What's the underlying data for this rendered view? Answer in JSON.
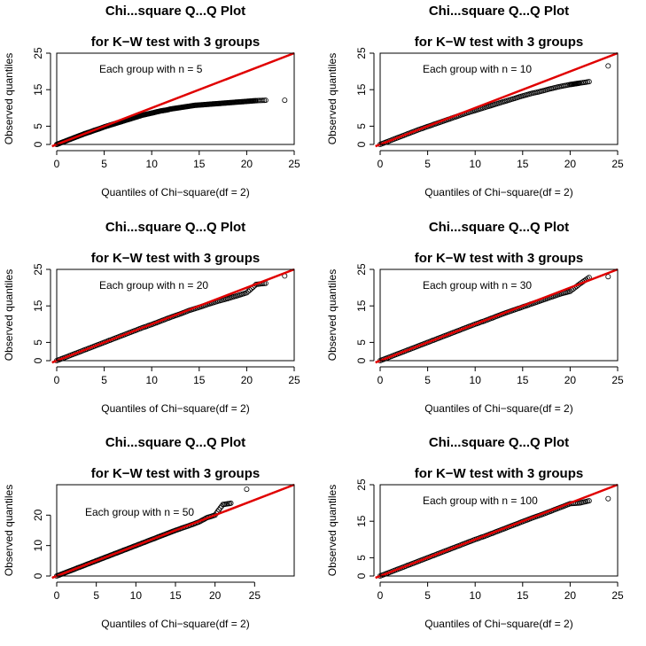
{
  "colors": {
    "reference_line": "#e00000",
    "points": "#000000",
    "axes": "#000000",
    "background": "#ffffff"
  },
  "chart_data": [
    {
      "type": "scatter",
      "title": "Chi...square Q...Q Plot",
      "subtitle": "for K−W test with 3 groups",
      "annotation": "Each group with n = 5",
      "xlabel": "Quantiles of Chi−square(df = 2)",
      "ylabel": "Observed quantiles",
      "xlim": [
        0,
        25
      ],
      "ylim": [
        0,
        25
      ],
      "xticks": [
        "0",
        "5",
        "10",
        "15",
        "20",
        "25"
      ],
      "yticks": [
        "0",
        "5",
        "15",
        "25"
      ],
      "yticks_values": [
        0,
        5,
        15,
        25
      ],
      "reference_line": {
        "intercept": 0,
        "slope": 1
      },
      "points": [
        [
          0,
          0
        ],
        [
          0.5,
          0.5
        ],
        [
          1,
          1
        ],
        [
          1.5,
          1.5
        ],
        [
          2,
          2
        ],
        [
          2.5,
          2.5
        ],
        [
          3,
          3
        ],
        [
          3.5,
          3.4
        ],
        [
          4,
          3.9
        ],
        [
          4.5,
          4.3
        ],
        [
          5,
          4.8
        ],
        [
          5.5,
          5.2
        ],
        [
          6,
          5.6
        ],
        [
          6.5,
          6.0
        ],
        [
          7,
          6.4
        ],
        [
          7.5,
          6.8
        ],
        [
          8,
          7.2
        ],
        [
          8.5,
          7.6
        ],
        [
          9,
          8.0
        ],
        [
          9.5,
          8.3
        ],
        [
          10,
          8.6
        ],
        [
          10.5,
          8.9
        ],
        [
          11,
          9.2
        ],
        [
          11.5,
          9.4
        ],
        [
          12,
          9.7
        ],
        [
          12.5,
          9.9
        ],
        [
          13,
          10.1
        ],
        [
          13.5,
          10.3
        ],
        [
          14,
          10.5
        ],
        [
          14.5,
          10.7
        ],
        [
          15,
          10.8
        ],
        [
          15.5,
          10.9
        ],
        [
          16,
          11.0
        ],
        [
          16.5,
          11.1
        ],
        [
          17,
          11.2
        ],
        [
          17.5,
          11.3
        ],
        [
          18,
          11.4
        ],
        [
          18.5,
          11.5
        ],
        [
          19,
          11.6
        ],
        [
          19.5,
          11.7
        ],
        [
          20,
          11.8
        ],
        [
          20.5,
          11.9
        ],
        [
          21,
          12.0
        ],
        [
          22,
          12.1
        ],
        [
          24,
          12.1
        ]
      ]
    },
    {
      "type": "scatter",
      "title": "Chi...square Q...Q Plot",
      "subtitle": "for K−W test with 3 groups",
      "annotation": "Each group with n = 10",
      "xlabel": "Quantiles of Chi−square(df = 2)",
      "ylabel": "Observed quantiles",
      "xlim": [
        0,
        25
      ],
      "ylim": [
        0,
        25
      ],
      "xticks": [
        "0",
        "5",
        "10",
        "15",
        "20",
        "25"
      ],
      "yticks": [
        "0",
        "5",
        "15",
        "25"
      ],
      "yticks_values": [
        0,
        5,
        15,
        25
      ],
      "reference_line": {
        "intercept": 0,
        "slope": 1
      },
      "points": [
        [
          0,
          0
        ],
        [
          1,
          1
        ],
        [
          2,
          2
        ],
        [
          3,
          3
        ],
        [
          4,
          4
        ],
        [
          5,
          4.9
        ],
        [
          6,
          5.8
        ],
        [
          7,
          6.7
        ],
        [
          8,
          7.6
        ],
        [
          9,
          8.5
        ],
        [
          10,
          9.3
        ],
        [
          11,
          10.1
        ],
        [
          12,
          10.9
        ],
        [
          13,
          11.7
        ],
        [
          14,
          12.5
        ],
        [
          15,
          13.3
        ],
        [
          16,
          14.0
        ],
        [
          17,
          14.6
        ],
        [
          18,
          15.3
        ],
        [
          19,
          15.9
        ],
        [
          20,
          16.4
        ],
        [
          20.5,
          16.6
        ],
        [
          21,
          16.8
        ],
        [
          22,
          17.2
        ],
        [
          24,
          21.5
        ]
      ]
    },
    {
      "type": "scatter",
      "title": "Chi...square Q...Q Plot",
      "subtitle": "for K−W test with 3 groups",
      "annotation": "Each group with n = 20",
      "xlabel": "Quantiles of Chi−square(df = 2)",
      "ylabel": "Observed quantiles",
      "xlim": [
        0,
        25
      ],
      "ylim": [
        0,
        25
      ],
      "xticks": [
        "0",
        "5",
        "10",
        "15",
        "20",
        "25"
      ],
      "yticks": [
        "0",
        "5",
        "15",
        "25"
      ],
      "yticks_values": [
        0,
        5,
        15,
        25
      ],
      "reference_line": {
        "intercept": 0,
        "slope": 1
      },
      "points": [
        [
          0,
          0
        ],
        [
          1,
          1
        ],
        [
          2,
          2
        ],
        [
          3,
          3
        ],
        [
          4,
          4
        ],
        [
          5,
          5
        ],
        [
          6,
          6
        ],
        [
          7,
          7
        ],
        [
          8,
          8
        ],
        [
          9,
          9
        ],
        [
          10,
          9.9
        ],
        [
          11,
          10.9
        ],
        [
          12,
          11.9
        ],
        [
          13,
          12.8
        ],
        [
          14,
          13.8
        ],
        [
          15,
          14.6
        ],
        [
          16,
          15.5
        ],
        [
          17,
          16.3
        ],
        [
          18,
          17.0
        ],
        [
          19,
          17.8
        ],
        [
          20,
          18.6
        ],
        [
          21,
          20.9
        ],
        [
          22,
          21.2
        ],
        [
          24,
          23.2
        ]
      ]
    },
    {
      "type": "scatter",
      "title": "Chi...square Q...Q Plot",
      "subtitle": "for K−W test with 3 groups",
      "annotation": "Each group with n = 30",
      "xlabel": "Quantiles of Chi−square(df = 2)",
      "ylabel": "Observed quantiles",
      "xlim": [
        0,
        25
      ],
      "ylim": [
        0,
        25
      ],
      "xticks": [
        "0",
        "5",
        "10",
        "15",
        "20",
        "25"
      ],
      "yticks": [
        "0",
        "5",
        "15",
        "25"
      ],
      "yticks_values": [
        0,
        5,
        15,
        25
      ],
      "reference_line": {
        "intercept": 0,
        "slope": 1
      },
      "points": [
        [
          0,
          0
        ],
        [
          1,
          1
        ],
        [
          2,
          2
        ],
        [
          3,
          3
        ],
        [
          4,
          4
        ],
        [
          5,
          5
        ],
        [
          6,
          6
        ],
        [
          7,
          7
        ],
        [
          8,
          8
        ],
        [
          9,
          9
        ],
        [
          10,
          10
        ],
        [
          11,
          10.9
        ],
        [
          12,
          11.9
        ],
        [
          13,
          12.9
        ],
        [
          14,
          13.8
        ],
        [
          15,
          14.7
        ],
        [
          16,
          15.6
        ],
        [
          17,
          16.5
        ],
        [
          18,
          17.4
        ],
        [
          19,
          18.3
        ],
        [
          20,
          19.0
        ],
        [
          21,
          21.0
        ],
        [
          22,
          22.8
        ],
        [
          24,
          23.0
        ]
      ]
    },
    {
      "type": "scatter",
      "title": "Chi...square Q...Q Plot",
      "subtitle": "for K−W test with 3 groups",
      "annotation": "Each group with n = 50",
      "xlabel": "Quantiles of Chi−square(df = 2)",
      "ylabel": "Observed quantiles",
      "xlim": [
        0,
        30
      ],
      "ylim": [
        0,
        30
      ],
      "xticks": [
        "0",
        "5",
        "10",
        "15",
        "20",
        "25"
      ],
      "yticks": [
        "0",
        "10",
        "20"
      ],
      "yticks_values": [
        0,
        10,
        20
      ],
      "reference_line": {
        "intercept": 0,
        "slope": 1
      },
      "points": [
        [
          0,
          0
        ],
        [
          1,
          1
        ],
        [
          2,
          2
        ],
        [
          3,
          3
        ],
        [
          4,
          4
        ],
        [
          5,
          5
        ],
        [
          6,
          6
        ],
        [
          7,
          7
        ],
        [
          8,
          8
        ],
        [
          9,
          9
        ],
        [
          10,
          10
        ],
        [
          11,
          11
        ],
        [
          12,
          12
        ],
        [
          13,
          13
        ],
        [
          14,
          14
        ],
        [
          15,
          15
        ],
        [
          16,
          15.9
        ],
        [
          17,
          16.8
        ],
        [
          18,
          17.8
        ],
        [
          19,
          19.2
        ],
        [
          20,
          20.0
        ],
        [
          21,
          23.5
        ],
        [
          22,
          23.9
        ],
        [
          24,
          28.5
        ]
      ]
    },
    {
      "type": "scatter",
      "title": "Chi...square Q...Q Plot",
      "subtitle": "for K−W test with 3 groups",
      "annotation": "Each group with n = 100",
      "xlabel": "Quantiles of Chi−square(df = 2)",
      "ylabel": "Observed quantiles",
      "xlim": [
        0,
        25
      ],
      "ylim": [
        0,
        25
      ],
      "xticks": [
        "0",
        "5",
        "10",
        "15",
        "20",
        "25"
      ],
      "yticks": [
        "0",
        "5",
        "15",
        "25"
      ],
      "yticks_values": [
        0,
        5,
        15,
        25
      ],
      "reference_line": {
        "intercept": 0,
        "slope": 1
      },
      "points": [
        [
          0,
          0
        ],
        [
          1,
          1
        ],
        [
          2,
          2
        ],
        [
          3,
          3
        ],
        [
          4,
          4
        ],
        [
          5,
          5
        ],
        [
          6,
          6
        ],
        [
          7,
          7
        ],
        [
          8,
          8
        ],
        [
          9,
          9
        ],
        [
          10,
          10
        ],
        [
          11,
          10.9
        ],
        [
          12,
          11.9
        ],
        [
          13,
          12.9
        ],
        [
          14,
          13.9
        ],
        [
          15,
          14.9
        ],
        [
          16,
          15.9
        ],
        [
          17,
          16.8
        ],
        [
          18,
          17.8
        ],
        [
          19,
          18.8
        ],
        [
          20,
          19.8
        ],
        [
          21,
          20.0
        ],
        [
          22,
          20.6
        ],
        [
          24,
          21.2
        ]
      ]
    }
  ]
}
